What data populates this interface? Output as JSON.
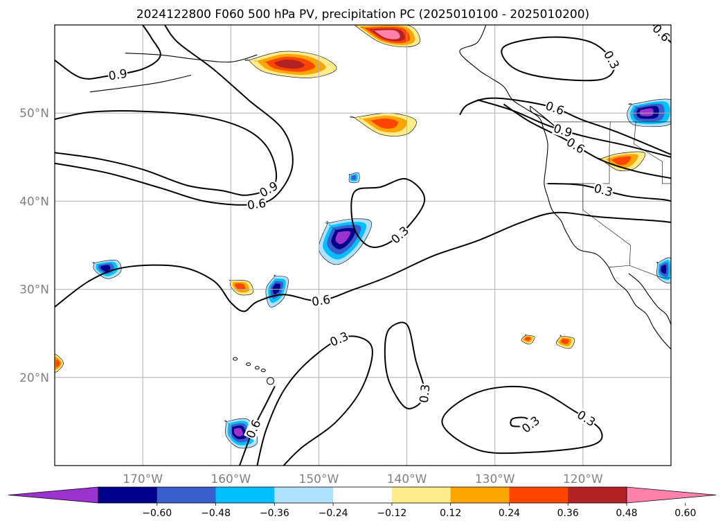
{
  "title": "2024122800 F060 500 hPa PV, precipitation PC (2025010100 - 2025010200)",
  "chart_data": {
    "type": "map",
    "title": "2024122800 F060 500 hPa PV, precipitation PC (2025010100 - 2025010200)",
    "lon_range": [
      -180,
      -110
    ],
    "lat_range": [
      10,
      60
    ],
    "grid": true,
    "lat_ticks": [
      {
        "lat": 50,
        "label": "50°N"
      },
      {
        "lat": 40,
        "label": "40°N"
      },
      {
        "lat": 30,
        "label": "30°N"
      },
      {
        "lat": 20,
        "label": "20°N"
      }
    ],
    "lon_ticks": [
      {
        "lon": -170,
        "label": "170°W"
      },
      {
        "lon": -160,
        "label": "160°W"
      },
      {
        "lon": -150,
        "label": "150°W"
      },
      {
        "lon": -140,
        "label": "140°W"
      },
      {
        "lon": -130,
        "label": "130°W"
      },
      {
        "lon": -120,
        "label": "120°W"
      }
    ],
    "colorbar": {
      "boundaries": [
        -0.72,
        -0.6,
        -0.48,
        -0.36,
        -0.24,
        -0.12,
        0.12,
        0.24,
        0.36,
        0.48,
        0.6,
        0.72
      ],
      "tick_labels": [
        "−0.60",
        "−0.48",
        "−0.36",
        "−0.24",
        "−0.12",
        "0.12",
        "0.24",
        "0.36",
        "0.48",
        "0.60"
      ],
      "colors": [
        "#9a32cd",
        "#00008b",
        "#3a5fcd",
        "#00bfff",
        "#b0e2ff",
        "#ffffff",
        "#ffec8b",
        "#ffa500",
        "#ff4500",
        "#b22222",
        "#ff82ab"
      ],
      "extend": "both"
    },
    "pv_contour_levels": [
      0.3,
      0.6,
      0.9
    ],
    "pv_contours": [
      {
        "level": 0.9,
        "label": "0.9",
        "points": [
          [
            -180,
            45.5
          ],
          [
            -175,
            44.8
          ],
          [
            -170,
            43.6
          ],
          [
            -165,
            41.8
          ],
          [
            -161,
            41.2
          ],
          [
            -158,
            40.7
          ],
          [
            -155,
            42.0
          ],
          [
            -155.5,
            45.5
          ],
          [
            -158,
            48.0
          ],
          [
            -163,
            49.6
          ],
          [
            -170,
            50.2
          ],
          [
            -176,
            50.1
          ],
          [
            -180,
            49.3
          ]
        ]
      },
      {
        "level": 0.9,
        "label": "0.9",
        "points": [
          [
            -180,
            56.0
          ],
          [
            -177,
            54.0
          ],
          [
            -174,
            54.2
          ],
          [
            -170,
            55.0
          ],
          [
            -168,
            56.5
          ],
          [
            -169,
            58.5
          ],
          [
            -170,
            60.0
          ]
        ]
      },
      {
        "level": 0.6,
        "label": "0.6",
        "points": [
          [
            -180,
            44.3
          ],
          [
            -174,
            43.2
          ],
          [
            -168,
            41.5
          ],
          [
            -163,
            40.0
          ],
          [
            -158,
            39.6
          ],
          [
            -155,
            40.5
          ],
          [
            -153,
            44.0
          ],
          [
            -154,
            48.0
          ],
          [
            -158,
            51.5
          ],
          [
            -162,
            55.0
          ],
          [
            -166,
            58.0
          ],
          [
            -167.5,
            60.0
          ]
        ]
      },
      {
        "level": 0.6,
        "label": "0.6",
        "points": [
          [
            -180,
            28.0
          ],
          [
            -176,
            31.0
          ],
          [
            -172,
            32.5
          ],
          [
            -166,
            32.6
          ],
          [
            -162,
            31.0
          ],
          [
            -160,
            28.5
          ],
          [
            -158.5,
            27.5
          ],
          [
            -157,
            28.6
          ],
          [
            -154,
            29.4
          ],
          [
            -150,
            28.7
          ],
          [
            -146,
            30.0
          ],
          [
            -142,
            31.5
          ],
          [
            -137,
            33.8
          ],
          [
            -132,
            35.5
          ],
          [
            -127,
            37.6
          ],
          [
            -123,
            38.7
          ],
          [
            -118,
            38.2
          ],
          [
            -112,
            37.8
          ],
          [
            -110,
            37.6
          ]
        ]
      },
      {
        "level": 0.6,
        "label": "0.6",
        "points": [
          [
            -134,
            49.8
          ],
          [
            -133,
            51.0
          ],
          [
            -130,
            51.7
          ],
          [
            -124,
            50.8
          ],
          [
            -120,
            49.2
          ],
          [
            -116,
            47.8
          ],
          [
            -110,
            45.3
          ]
        ]
      },
      {
        "level": 0.6,
        "label": "0.6",
        "points": [
          [
            -129,
            51.0
          ],
          [
            -126,
            49.0
          ],
          [
            -122,
            47.0
          ],
          [
            -118,
            44.7
          ],
          [
            -114,
            43.4
          ],
          [
            -110,
            42.6
          ]
        ]
      },
      {
        "level": 0.9,
        "label": "0.9",
        "points": [
          [
            -132,
            51.5
          ],
          [
            -128,
            50.3
          ],
          [
            -124,
            48.6
          ],
          [
            -120,
            47.4
          ],
          [
            -115,
            46.3
          ],
          [
            -110,
            45.0
          ]
        ]
      },
      {
        "level": 0.3,
        "label": "0.3",
        "points": [
          [
            -124,
            42.0
          ],
          [
            -120,
            41.8
          ],
          [
            -115,
            40.6
          ],
          [
            -111,
            40.2
          ],
          [
            -110,
            40.0
          ]
        ]
      },
      {
        "level": 0.3,
        "label": "0.3",
        "points": [
          [
            -143,
            41.6
          ],
          [
            -140,
            42.5
          ],
          [
            -138,
            40.0
          ],
          [
            -141,
            36.0
          ],
          [
            -144,
            34.8
          ],
          [
            -146,
            37.0
          ],
          [
            -146,
            41.0
          ],
          [
            -143,
            41.6
          ]
        ]
      },
      {
        "level": 0.3,
        "label": "0.3",
        "points": [
          [
            -129,
            57.5
          ],
          [
            -124,
            58.6
          ],
          [
            -119,
            58.0
          ],
          [
            -116.5,
            55.5
          ],
          [
            -118,
            53.8
          ],
          [
            -124,
            54.0
          ],
          [
            -128,
            55.2
          ],
          [
            -129,
            57.5
          ]
        ]
      },
      {
        "level": 0.6,
        "label": "0.6",
        "points": [
          [
            -112,
            60.0
          ],
          [
            -110,
            58.0
          ]
        ]
      },
      {
        "level": 0.3,
        "label": "0.3",
        "points": [
          [
            -157,
            10.0
          ],
          [
            -156,
            14.0
          ],
          [
            -154,
            18.5
          ],
          [
            -151,
            22.0
          ],
          [
            -147,
            24.6
          ],
          [
            -144,
            23.5
          ],
          [
            -145,
            19.0
          ],
          [
            -148,
            15.0
          ],
          [
            -152,
            12.0
          ],
          [
            -154,
            10.0
          ]
        ]
      },
      {
        "level": 0.6,
        "label": "0.6",
        "points": [
          [
            -159,
            10.0
          ],
          [
            -157.5,
            14.0
          ],
          [
            -156,
            17.0
          ],
          [
            -155,
            19.0
          ]
        ]
      },
      {
        "level": 0.3,
        "label": "0.3",
        "points": [
          [
            -142,
            25.5
          ],
          [
            -140,
            26.0
          ],
          [
            -139,
            22.0
          ],
          [
            -138,
            18.0
          ],
          [
            -140,
            16.5
          ],
          [
            -142,
            19.5
          ],
          [
            -142.5,
            23.0
          ],
          [
            -142,
            25.5
          ]
        ]
      },
      {
        "level": 0.3,
        "label": "0.3",
        "points": [
          [
            -136,
            15.0
          ],
          [
            -132,
            18.3
          ],
          [
            -126,
            18.8
          ],
          [
            -121,
            16.2
          ],
          [
            -118,
            14.0
          ],
          [
            -119,
            12.3
          ],
          [
            -126,
            11.5
          ],
          [
            -132,
            11.8
          ],
          [
            -136,
            15.0
          ]
        ]
      },
      {
        "level": 0.3,
        "label": "0.3",
        "points": [
          [
            -128,
            15.3
          ],
          [
            -126.5,
            15.4
          ],
          [
            -126,
            14.6
          ],
          [
            -128,
            14.5
          ],
          [
            -128,
            15.3
          ]
        ]
      }
    ],
    "precip_areas": [
      {
        "sign": "positive",
        "max": 0.48,
        "points": [
          [
            -158,
            56.0
          ],
          [
            -154,
            57.0
          ],
          [
            -150,
            56.5
          ],
          [
            -148,
            55.0
          ],
          [
            -151,
            54.0
          ],
          [
            -156,
            54.6
          ],
          [
            -158,
            56.0
          ]
        ]
      },
      {
        "sign": "positive",
        "max": 0.72,
        "points": [
          [
            -146,
            60.0
          ],
          [
            -140,
            60.0
          ],
          [
            -138.5,
            58.2
          ],
          [
            -140,
            57.5
          ],
          [
            -143,
            58.0
          ],
          [
            -146,
            60.0
          ]
        ]
      },
      {
        "sign": "positive",
        "max": 0.36,
        "points": [
          [
            -146,
            49.5
          ],
          [
            -142,
            50.0
          ],
          [
            -139,
            49.2
          ],
          [
            -140,
            47.6
          ],
          [
            -143,
            47.6
          ],
          [
            -146,
            49.5
          ]
        ]
      },
      {
        "sign": "positive",
        "max": 0.36,
        "points": [
          [
            -118,
            44.8
          ],
          [
            -116,
            45.4
          ],
          [
            -113,
            45.5
          ],
          [
            -114,
            43.8
          ],
          [
            -116,
            43.5
          ],
          [
            -118,
            44.8
          ]
        ]
      },
      {
        "sign": "positive",
        "max": 0.36,
        "points": [
          [
            -160,
            31.0
          ],
          [
            -158,
            30.9
          ],
          [
            -157.5,
            29.6
          ],
          [
            -159,
            29.4
          ],
          [
            -160,
            30.3
          ],
          [
            -160,
            31.0
          ]
        ]
      },
      {
        "sign": "positive",
        "max": 0.36,
        "points": [
          [
            -180,
            22.6
          ],
          [
            -179,
            21.6
          ],
          [
            -180,
            20.6
          ]
        ]
      },
      {
        "sign": "positive",
        "max": 0.36,
        "points": [
          [
            -126.5,
            24.8
          ],
          [
            -125.5,
            24.6
          ],
          [
            -126,
            23.8
          ],
          [
            -127,
            24.2
          ],
          [
            -126.5,
            24.8
          ]
        ]
      },
      {
        "sign": "positive",
        "max": 0.36,
        "points": [
          [
            -122.5,
            24.7
          ],
          [
            -121,
            24.4
          ],
          [
            -121.5,
            23.3
          ],
          [
            -123,
            23.8
          ],
          [
            -122.5,
            24.7
          ]
        ]
      },
      {
        "sign": "negative",
        "min": -0.6,
        "points": [
          [
            -149,
            37.5
          ],
          [
            -146,
            38.0
          ],
          [
            -144,
            37.5
          ],
          [
            -145.5,
            34.5
          ],
          [
            -148,
            32.8
          ],
          [
            -150,
            34.5
          ],
          [
            -149,
            37.5
          ]
        ]
      },
      {
        "sign": "negative",
        "min": -0.48,
        "points": [
          [
            -175.5,
            33.0
          ],
          [
            -173,
            33.3
          ],
          [
            -172.5,
            32.0
          ],
          [
            -174,
            31.2
          ],
          [
            -175.5,
            32.2
          ],
          [
            -175.5,
            33.0
          ]
        ]
      },
      {
        "sign": "negative",
        "min": -0.48,
        "points": [
          [
            -155,
            31.5
          ],
          [
            -153.5,
            31.2
          ],
          [
            -154,
            29.0
          ],
          [
            -155.5,
            28.0
          ],
          [
            -156,
            30.0
          ],
          [
            -155,
            31.5
          ]
        ]
      },
      {
        "sign": "negative",
        "min": -0.6,
        "points": [
          [
            -160.5,
            15.0
          ],
          [
            -158,
            15.2
          ],
          [
            -157,
            12.6
          ],
          [
            -159,
            12.0
          ],
          [
            -160.5,
            13.3
          ],
          [
            -160.5,
            15.0
          ]
        ]
      },
      {
        "sign": "negative",
        "min": -0.6,
        "points": [
          [
            -114.5,
            51.0
          ],
          [
            -110,
            51.5
          ],
          [
            -110,
            48.8
          ],
          [
            -114,
            48.6
          ],
          [
            -115,
            49.8
          ],
          [
            -114.5,
            51.0
          ]
        ]
      },
      {
        "sign": "negative",
        "min": -0.48,
        "points": [
          [
            -111.5,
            33.0
          ],
          [
            -110,
            33.5
          ],
          [
            -110,
            30.8
          ],
          [
            -111.5,
            31.4
          ],
          [
            -111.5,
            33.0
          ]
        ]
      },
      {
        "sign": "negative",
        "min": -0.36,
        "points": [
          [
            -146.5,
            43.0
          ],
          [
            -145.5,
            43.2
          ],
          [
            -145.5,
            42.2
          ],
          [
            -146.5,
            42.2
          ],
          [
            -146.5,
            43.0
          ]
        ]
      }
    ]
  }
}
